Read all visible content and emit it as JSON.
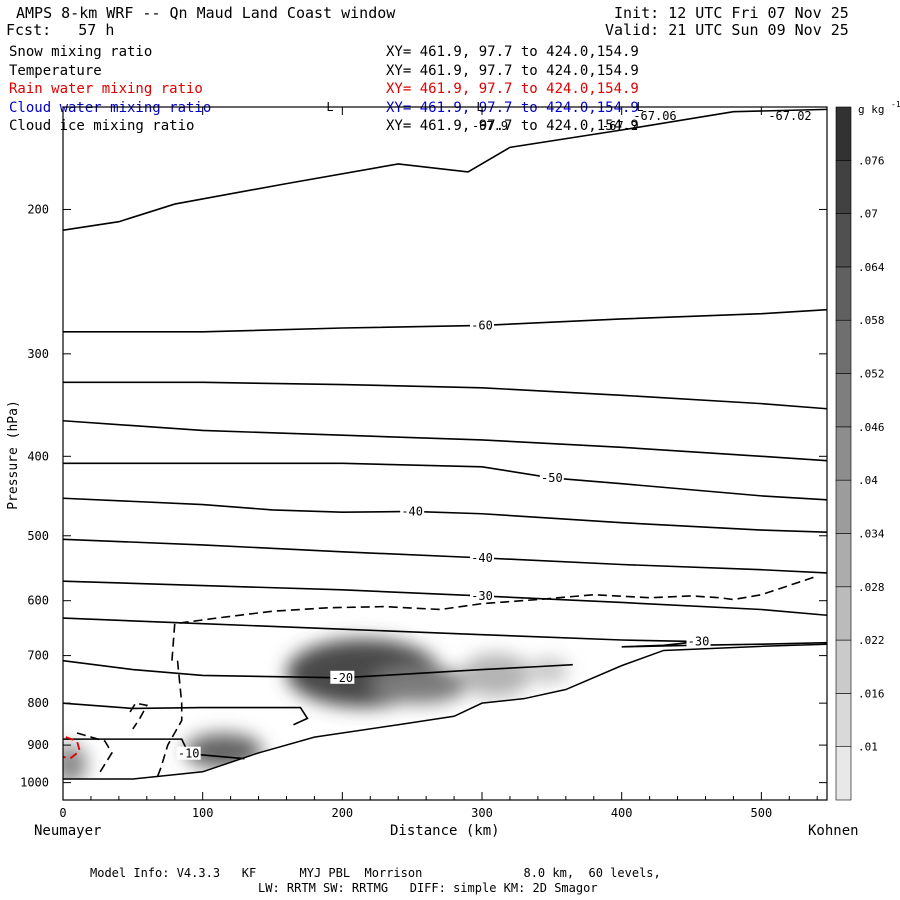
{
  "header": {
    "title": "AMPS 8-km WRF -- Qn Maud Land Coast window",
    "forecast": "Fcst:   57 h",
    "init": "Init: 12 UTC Fri 07 Nov 25",
    "valid": "Valid: 21 UTC Sun 09 Nov 25"
  },
  "legend": [
    {
      "label": "Snow mixing ratio",
      "xy": "XY= 461.9, 97.7 to 424.0,154.9",
      "color": "#000000"
    },
    {
      "label": "Temperature",
      "xy": "XY= 461.9, 97.7 to 424.0,154.9",
      "color": "#000000"
    },
    {
      "label": "Rain water mixing ratio",
      "xy": "XY= 461.9, 97.7 to 424.0,154.9",
      "color": "#e00000"
    },
    {
      "label": "Cloud water mixing ratio",
      "xy": "XY= 461.9, 97.7 to 424.0,154.9",
      "color": "#0000cc"
    },
    {
      "label": "Cloud ice mixing ratio",
      "xy": "XY= 461.9, 97.7 to 424.0,154.9",
      "color": "#000000"
    }
  ],
  "top_annotations": [
    "L",
    "L",
    "L",
    "-67.2",
    "-67.9",
    "-67.06",
    "-67.02"
  ],
  "footer": {
    "line1": "Model Info: V4.3.3   KF      MYJ PBL  Morrison              8.0 km,  60 levels,",
    "line2": "LW: RRTM SW: RRTMG   DIFF: simple KM: 2D Smagor"
  },
  "chart_data": {
    "type": "heatmap",
    "xlabel": "Distance (km)",
    "ylabel": "Pressure (hPa)",
    "x_end_labels": {
      "left": "Neumayer",
      "right": "Kohnen"
    },
    "xlim": [
      0,
      547
    ],
    "ylim": [
      1050,
      150
    ],
    "y_scale": "log",
    "x_ticks": [
      0,
      100,
      200,
      300,
      400,
      500
    ],
    "x_tick_labels": [
      "0",
      "100",
      "200",
      "300",
      "400",
      "500"
    ],
    "y_ticks": [
      200,
      300,
      400,
      500,
      600,
      700,
      800,
      900,
      1000
    ],
    "y_tick_labels": [
      "200",
      "300",
      "400",
      "500",
      "600",
      "700",
      "800",
      "900",
      "1000"
    ],
    "colorbar": {
      "unit_label": "g kg",
      "unit_exponent": "-1",
      "ticks": [
        ".01",
        ".016",
        ".022",
        ".028",
        ".034",
        ".04",
        ".046",
        ".052",
        ".058",
        ".064",
        ".07",
        ".076"
      ],
      "levels": [
        0.007,
        0.013,
        0.019,
        0.025,
        0.031,
        0.037,
        0.043,
        0.049,
        0.055,
        0.061,
        0.067,
        0.073,
        0.079
      ]
    },
    "snow_blobs": [
      {
        "x": 215,
        "p": 735,
        "rx": 55,
        "rp": 70,
        "value": 0.07
      },
      {
        "x": 255,
        "p": 760,
        "rx": 35,
        "rp": 40,
        "value": 0.05
      },
      {
        "x": 115,
        "p": 915,
        "rx": 28,
        "rp": 45,
        "value": 0.06
      },
      {
        "x": 310,
        "p": 740,
        "rx": 25,
        "rp": 45,
        "value": 0.028
      },
      {
        "x": 348,
        "p": 730,
        "rx": 14,
        "rp": 25,
        "value": 0.022
      },
      {
        "x": 5,
        "p": 950,
        "rx": 12,
        "rp": 55,
        "value": 0.045
      }
    ],
    "temperature_contours": [
      {
        "label": "",
        "points": [
          [
            0,
            212
          ],
          [
            40,
            207
          ],
          [
            80,
            197
          ],
          [
            160,
            186
          ],
          [
            240,
            176
          ],
          [
            290,
            180
          ],
          [
            320,
            168
          ],
          [
            400,
            160
          ],
          [
            480,
            152
          ],
          [
            547,
            151
          ]
        ]
      },
      {
        "label": "-60",
        "points": [
          [
            0,
            282
          ],
          [
            100,
            282
          ],
          [
            200,
            279
          ],
          [
            300,
            277
          ],
          [
            400,
            272
          ],
          [
            500,
            268
          ],
          [
            547,
            265
          ]
        ]
      },
      {
        "label": "",
        "points": [
          [
            0,
            325
          ],
          [
            100,
            325
          ],
          [
            200,
            327
          ],
          [
            300,
            330
          ],
          [
            400,
            337
          ],
          [
            500,
            345
          ],
          [
            547,
            350
          ]
        ]
      },
      {
        "label": "",
        "points": [
          [
            0,
            362
          ],
          [
            100,
            372
          ],
          [
            200,
            377
          ],
          [
            300,
            382
          ],
          [
            400,
            390
          ],
          [
            500,
            400
          ],
          [
            547,
            405
          ]
        ]
      },
      {
        "label": "-50",
        "points": [
          [
            0,
            408
          ],
          [
            100,
            408
          ],
          [
            200,
            408
          ],
          [
            300,
            412
          ],
          [
            350,
            425
          ],
          [
            400,
            432
          ],
          [
            500,
            447
          ],
          [
            547,
            452
          ]
        ]
      },
      {
        "label": "-40",
        "points": [
          [
            0,
            450
          ],
          [
            100,
            458
          ],
          [
            150,
            465
          ],
          [
            200,
            468
          ],
          [
            250,
            467
          ],
          [
            300,
            470
          ],
          [
            400,
            482
          ],
          [
            500,
            492
          ],
          [
            547,
            495
          ]
        ]
      },
      {
        "label": "-40",
        "points": [
          [
            0,
            505
          ],
          [
            100,
            513
          ],
          [
            200,
            523
          ],
          [
            300,
            532
          ],
          [
            400,
            542
          ],
          [
            500,
            550
          ],
          [
            547,
            555
          ]
        ]
      },
      {
        "label": "-30",
        "points": [
          [
            0,
            568
          ],
          [
            100,
            575
          ],
          [
            200,
            582
          ],
          [
            300,
            592
          ],
          [
            400,
            603
          ],
          [
            500,
            615
          ],
          [
            547,
            625
          ]
        ]
      },
      {
        "label": "-30",
        "points": [
          [
            0,
            630
          ],
          [
            100,
            640
          ],
          [
            200,
            650
          ],
          [
            300,
            660
          ],
          [
            400,
            670
          ],
          [
            455,
            673
          ],
          [
            430,
            680
          ],
          [
            400,
            683
          ],
          [
            450,
            680
          ],
          [
            500,
            678
          ],
          [
            547,
            675
          ]
        ]
      },
      {
        "label": "-20",
        "points": [
          [
            0,
            710
          ],
          [
            50,
            728
          ],
          [
            100,
            740
          ],
          [
            200,
            745
          ],
          [
            300,
            728
          ],
          [
            340,
            722
          ],
          [
            365,
            718
          ]
        ]
      },
      {
        "label": "",
        "points": [
          [
            0,
            800
          ],
          [
            50,
            812
          ],
          [
            100,
            810
          ],
          [
            170,
            810
          ],
          [
            175,
            835
          ],
          [
            165,
            850
          ]
        ]
      },
      {
        "label": "-10",
        "points": [
          [
            0,
            885
          ],
          [
            85,
            885
          ],
          [
            90,
            922
          ],
          [
            130,
            935
          ]
        ]
      }
    ],
    "cloud_ice_dashed": [
      {
        "points": [
          [
            78,
            710
          ],
          [
            80,
            640
          ],
          [
            110,
            630
          ],
          [
            150,
            618
          ],
          [
            190,
            612
          ],
          [
            230,
            610
          ],
          [
            270,
            615
          ],
          [
            300,
            605
          ],
          [
            340,
            598
          ],
          [
            380,
            590
          ],
          [
            420,
            595
          ],
          [
            450,
            592
          ],
          [
            470,
            595
          ],
          [
            480,
            598
          ],
          [
            500,
            590
          ],
          [
            540,
            560
          ]
        ]
      },
      {
        "points": [
          [
            82,
            710
          ],
          [
            85,
            800
          ],
          [
            85,
            840
          ],
          [
            75,
            900
          ],
          [
            70,
            960
          ],
          [
            67,
            990
          ]
        ]
      },
      {
        "points": [
          [
            48,
            820
          ],
          [
            52,
            800
          ],
          [
            60,
            805
          ],
          [
            55,
            835
          ],
          [
            50,
            860
          ]
        ]
      },
      {
        "points": [
          [
            10,
            870
          ],
          [
            30,
            890
          ],
          [
            35,
            920
          ],
          [
            25,
            980
          ]
        ]
      }
    ],
    "rain_dashed": [
      {
        "points": [
          [
            2,
            880
          ],
          [
            10,
            890
          ],
          [
            12,
            915
          ],
          [
            5,
            935
          ],
          [
            0,
            930
          ]
        ]
      }
    ],
    "terrain": [
      [
        0,
        990
      ],
      [
        50,
        990
      ],
      [
        100,
        970
      ],
      [
        140,
        920
      ],
      [
        180,
        880
      ],
      [
        240,
        850
      ],
      [
        280,
        830
      ],
      [
        300,
        800
      ],
      [
        330,
        790
      ],
      [
        360,
        770
      ],
      [
        400,
        720
      ],
      [
        430,
        690
      ],
      [
        500,
        682
      ],
      [
        547,
        678
      ]
    ]
  }
}
